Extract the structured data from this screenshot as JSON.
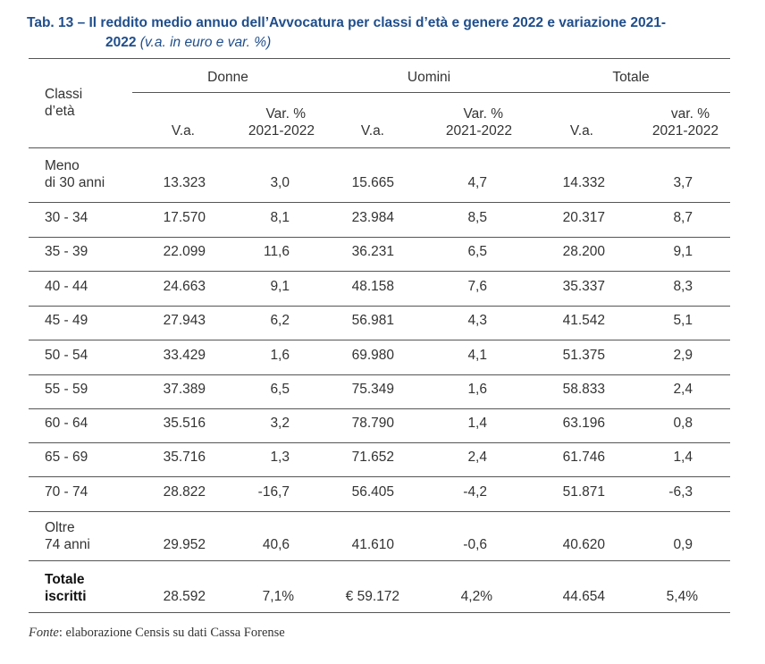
{
  "title": {
    "line1": "Tab. 13 – Il reddito medio annuo dell’Avvocatura per classi d’età e genere 2022 e variazione 2021-",
    "line2": "2022",
    "units": "(v.a. in euro e var. %)"
  },
  "header": {
    "row_label": [
      "Classi",
      "d’età"
    ],
    "groups": [
      "Donne",
      "Uomini",
      "Totale"
    ],
    "cols": [
      [
        "V.a."
      ],
      [
        "Var. %",
        "2021-2022"
      ],
      [
        "V.a."
      ],
      [
        "Var. %",
        "2021-2022"
      ],
      [
        "V.a."
      ],
      [
        "var. %",
        "2021-2022"
      ]
    ]
  },
  "rows": [
    {
      "label": [
        "Meno",
        "di 30 anni"
      ],
      "values": [
        "13.323",
        "3,0",
        "15.665",
        "4,7",
        "14.332",
        "3,7"
      ]
    },
    {
      "label": [
        "30 - 34"
      ],
      "values": [
        "17.570",
        "8,1",
        "23.984",
        "8,5",
        "20.317",
        "8,7"
      ]
    },
    {
      "label": [
        "35 - 39"
      ],
      "values": [
        "22.099",
        "11,6",
        "36.231",
        "6,5",
        "28.200",
        "9,1"
      ]
    },
    {
      "label": [
        "40 - 44"
      ],
      "values": [
        "24.663",
        "9,1",
        "48.158",
        "7,6",
        "35.337",
        "8,3"
      ]
    },
    {
      "label": [
        "45 - 49"
      ],
      "values": [
        "27.943",
        "6,2",
        "56.981",
        "4,3",
        "41.542",
        "5,1"
      ]
    },
    {
      "label": [
        "50 - 54"
      ],
      "values": [
        "33.429",
        "1,6",
        "69.980",
        "4,1",
        "51.375",
        "2,9"
      ]
    },
    {
      "label": [
        "55 - 59"
      ],
      "values": [
        "37.389",
        "6,5",
        "75.349",
        "1,6",
        "58.833",
        "2,4"
      ]
    },
    {
      "label": [
        "60 - 64"
      ],
      "values": [
        "35.516",
        "3,2",
        "78.790",
        "1,4",
        "63.196",
        "0,8"
      ]
    },
    {
      "label": [
        "65 - 69"
      ],
      "values": [
        "35.716",
        "1,3",
        "71.652",
        "2,4",
        "61.746",
        "1,4"
      ]
    },
    {
      "label": [
        "70 - 74"
      ],
      "values": [
        "28.822",
        "-16,7",
        "56.405",
        "-4,2",
        "51.871",
        "-6,3"
      ]
    },
    {
      "label": [
        "Oltre",
        "74 anni"
      ],
      "values": [
        "29.952",
        "40,6",
        "41.610",
        "-0,6",
        "40.620",
        "0,9"
      ]
    }
  ],
  "total": {
    "label": [
      "Totale",
      "iscritti"
    ],
    "values": [
      "28.592",
      "7,1%",
      "€ 59.172",
      "4,2%",
      "44.654",
      "5,4%"
    ]
  },
  "source": {
    "label": "Fonte",
    "text": ": elaborazione Censis su dati Cassa Forense"
  }
}
